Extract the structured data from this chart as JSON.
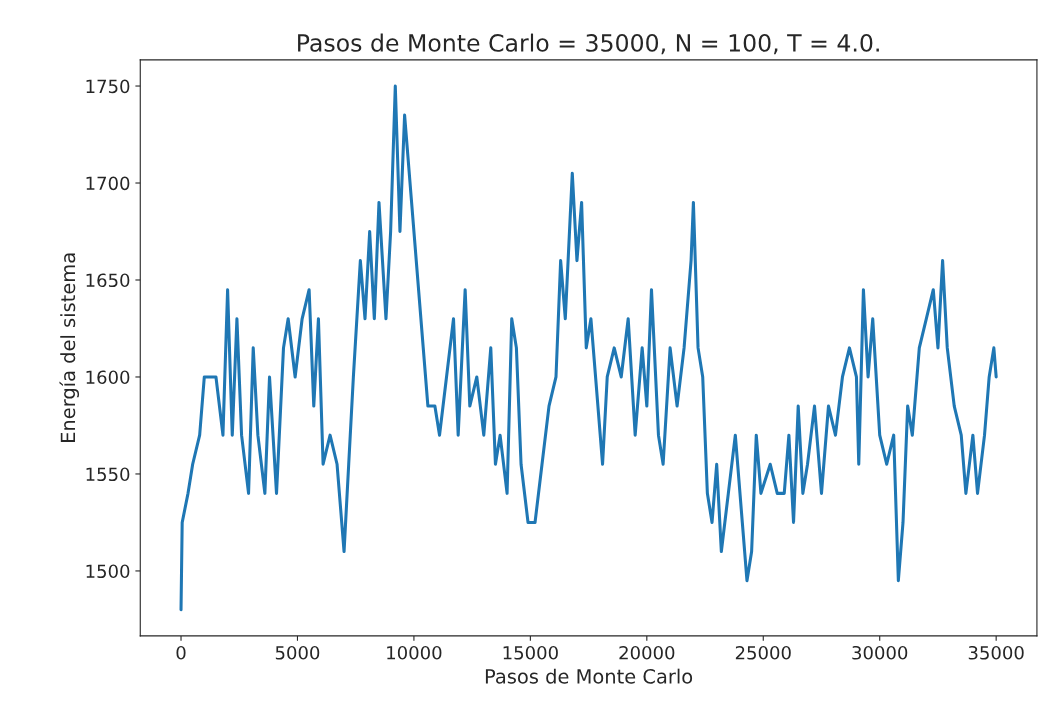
{
  "chart_data": {
    "type": "line",
    "title": "Pasos de Monte Carlo = 35000, N = 100, T = 4.0.",
    "xlabel": "Pasos de Monte Carlo",
    "ylabel": "Energía del sistema",
    "xlim": [
      -1750,
      36750
    ],
    "xticks": [
      0,
      5000,
      10000,
      15000,
      20000,
      25000,
      30000,
      35000
    ],
    "ylim": [
      1466.5,
      1763.5
    ],
    "yticks": [
      1500,
      1550,
      1600,
      1650,
      1700,
      1750
    ],
    "grid": false,
    "marker": "none",
    "line_style": "solid",
    "x": [
      0,
      50,
      300,
      500,
      800,
      1000,
      1500,
      1800,
      2000,
      2200,
      2400,
      2600,
      2900,
      3100,
      3300,
      3600,
      3800,
      4100,
      4400,
      4600,
      4900,
      5200,
      5500,
      5700,
      5900,
      6100,
      6400,
      6700,
      6900,
      7000,
      7200,
      7400,
      7700,
      7900,
      8100,
      8300,
      8500,
      8800,
      9000,
      9200,
      9400,
      9600,
      9900,
      10100,
      10400,
      10600,
      10900,
      11100,
      11400,
      11700,
      11900,
      12200,
      12400,
      12700,
      13000,
      13300,
      13500,
      13700,
      14000,
      14200,
      14400,
      14600,
      14900,
      15200,
      15500,
      15800,
      16100,
      16300,
      16500,
      16800,
      17000,
      17200,
      17400,
      17600,
      17900,
      18100,
      18300,
      18600,
      18900,
      19200,
      19500,
      19800,
      20000,
      20200,
      20500,
      20700,
      21000,
      21300,
      21600,
      21900,
      22000,
      22200,
      22400,
      22600,
      22800,
      23000,
      23200,
      23500,
      23800,
      24100,
      24300,
      24500,
      24700,
      24900,
      25300,
      25600,
      25900,
      26100,
      26300,
      26500,
      26700,
      26900,
      27200,
      27500,
      27800,
      28100,
      28400,
      28700,
      29000,
      29100,
      29300,
      29500,
      29700,
      30000,
      30300,
      30600,
      30800,
      31000,
      31200,
      31400,
      31700,
      32000,
      32300,
      32500,
      32700,
      32900,
      33200,
      33500,
      33700,
      34000,
      34200,
      34500,
      34700,
      34900,
      35000
    ],
    "series": [
      {
        "color": "#1f77b4",
        "values": [
          1480,
          1525,
          1540,
          1555,
          1570,
          1600,
          1600,
          1570,
          1645,
          1570,
          1630,
          1570,
          1540,
          1615,
          1570,
          1540,
          1600,
          1540,
          1615,
          1630,
          1600,
          1630,
          1645,
          1585,
          1630,
          1555,
          1570,
          1555,
          1525,
          1510,
          1555,
          1600,
          1660,
          1630,
          1675,
          1630,
          1690,
          1630,
          1675,
          1750,
          1675,
          1735,
          1690,
          1660,
          1615,
          1585,
          1585,
          1570,
          1600,
          1630,
          1570,
          1645,
          1585,
          1600,
          1570,
          1615,
          1555,
          1570,
          1540,
          1630,
          1615,
          1555,
          1525,
          1525,
          1555,
          1585,
          1600,
          1660,
          1630,
          1705,
          1660,
          1690,
          1615,
          1630,
          1585,
          1555,
          1600,
          1615,
          1600,
          1630,
          1570,
          1615,
          1585,
          1645,
          1570,
          1555,
          1615,
          1585,
          1615,
          1660,
          1690,
          1615,
          1600,
          1540,
          1525,
          1555,
          1510,
          1540,
          1570,
          1525,
          1495,
          1510,
          1570,
          1540,
          1555,
          1540,
          1540,
          1570,
          1525,
          1585,
          1540,
          1555,
          1585,
          1540,
          1585,
          1570,
          1600,
          1615,
          1600,
          1555,
          1645,
          1600,
          1630,
          1570,
          1555,
          1570,
          1495,
          1525,
          1585,
          1570,
          1615,
          1630,
          1645,
          1615,
          1660,
          1615,
          1585,
          1570,
          1540,
          1570,
          1540,
          1570,
          1600,
          1615,
          1600
        ]
      }
    ]
  }
}
